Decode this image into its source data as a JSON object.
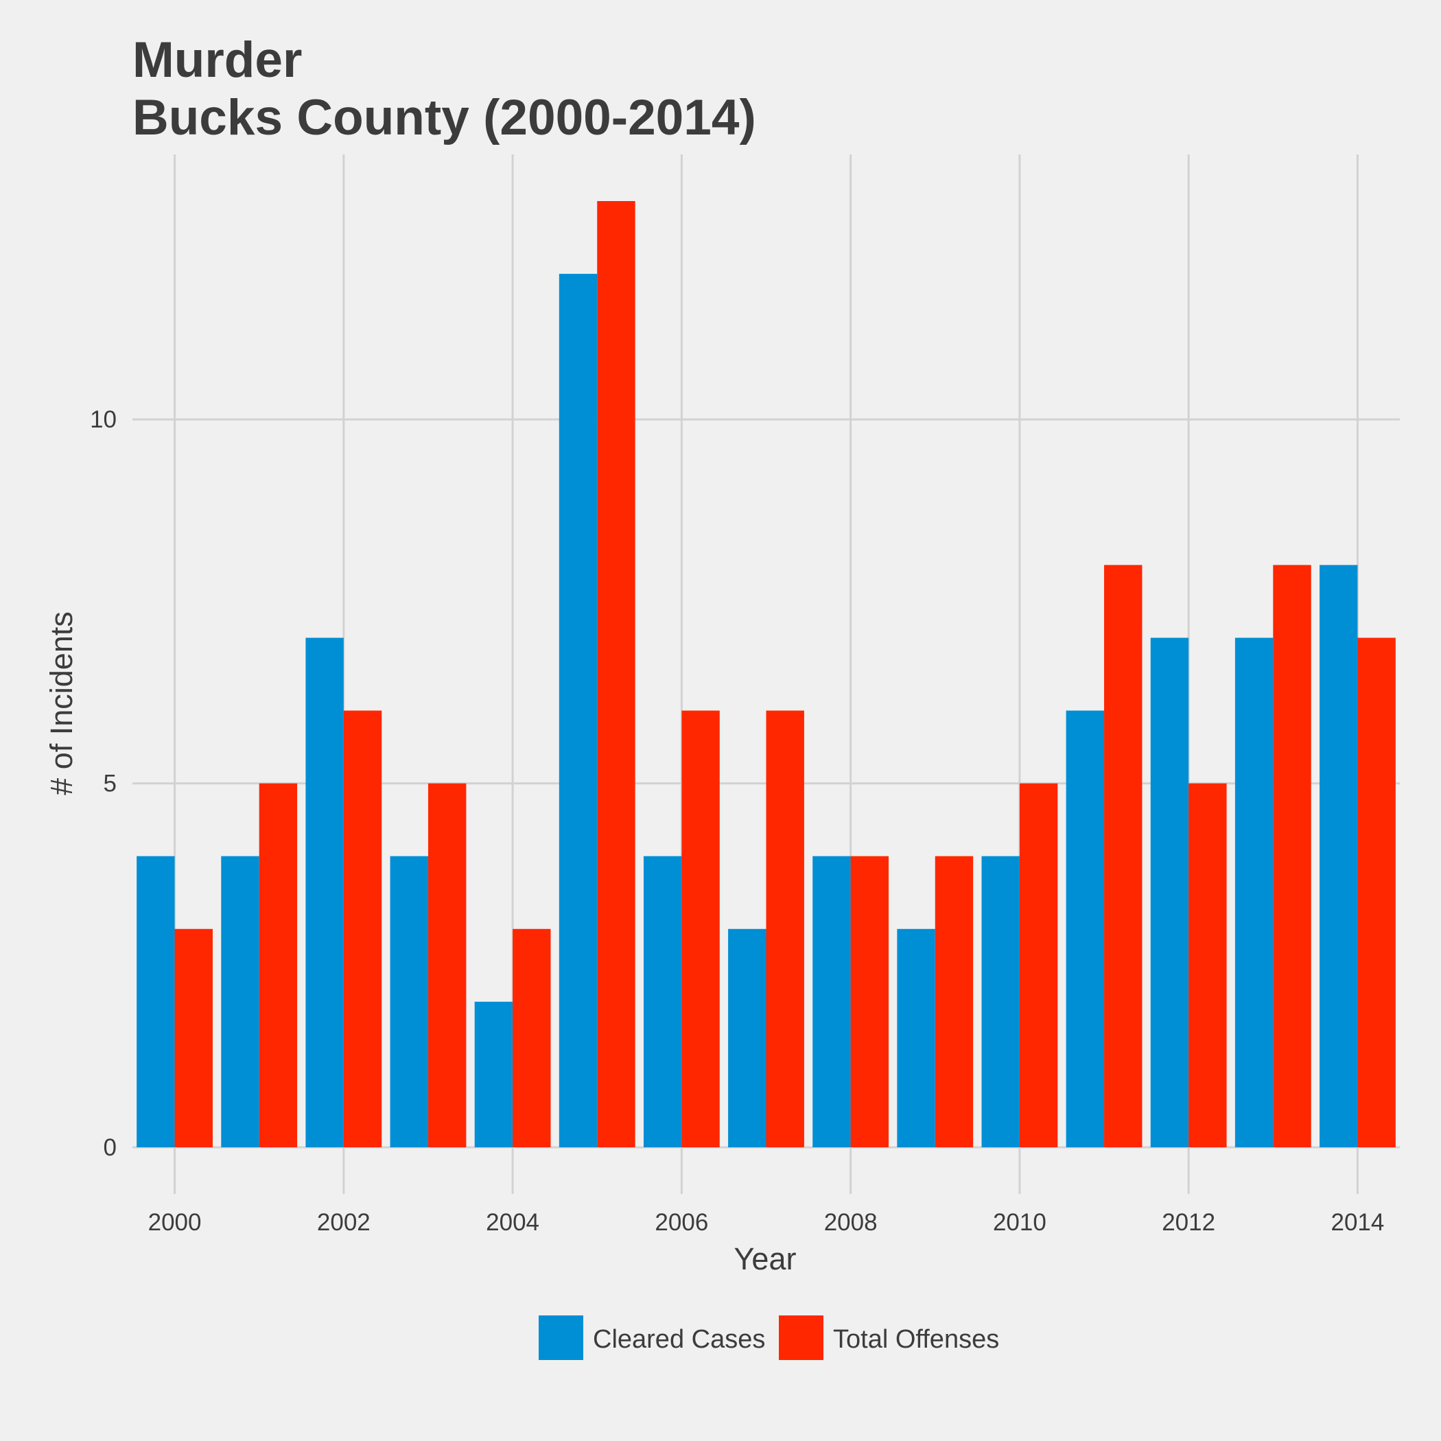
{
  "chart_data": {
    "type": "bar",
    "title": [
      "Murder",
      "Bucks County (2000-2014)"
    ],
    "xlabel": "Year",
    "ylabel": "# of Incidents",
    "x": [
      2000,
      2001,
      2002,
      2003,
      2004,
      2005,
      2006,
      2007,
      2008,
      2009,
      2010,
      2011,
      2012,
      2013,
      2014
    ],
    "x_ticks": [
      "2000",
      "2002",
      "2004",
      "2006",
      "2008",
      "2010",
      "2012",
      "2014"
    ],
    "y_ticks": [
      "0",
      "5",
      "10"
    ],
    "ylim": [
      0,
      13
    ],
    "grid": true,
    "legend_position": "bottom",
    "series": [
      {
        "name": "Cleared Cases",
        "color": "#008fd5",
        "values": [
          4,
          4,
          7,
          4,
          2,
          12,
          4,
          3,
          4,
          3,
          4,
          6,
          7,
          7,
          8
        ]
      },
      {
        "name": "Total Offenses",
        "color": "#ff2700",
        "values": [
          3,
          5,
          6,
          5,
          3,
          13,
          6,
          6,
          4,
          4,
          5,
          8,
          5,
          8,
          7
        ]
      }
    ]
  }
}
